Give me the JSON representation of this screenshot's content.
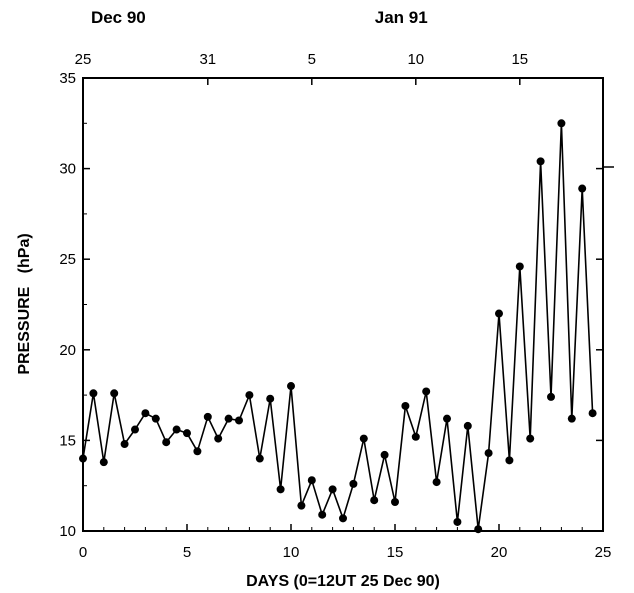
{
  "chart_data": {
    "type": "line",
    "xlabel": "DAYS (0=12UT 25 Dec 90)",
    "ylabel": "PRESSURE   (hPa)",
    "xlim": [
      0,
      25
    ],
    "ylim": [
      10,
      35
    ],
    "x_ticks": [
      0,
      5,
      10,
      15,
      20,
      25
    ],
    "y_ticks": [
      10,
      15,
      20,
      25,
      30,
      35
    ],
    "top_axis": {
      "months": [
        {
          "label": "Dec 90",
          "x": 1.7
        },
        {
          "label": "Jan 91",
          "x": 15.3
        }
      ],
      "ticks": [
        {
          "label": "25",
          "x": 0
        },
        {
          "label": "31",
          "x": 6
        },
        {
          "label": "5",
          "x": 11
        },
        {
          "label": "10",
          "x": 16
        },
        {
          "label": "15",
          "x": 21
        }
      ]
    },
    "series": [
      {
        "x": [
          0,
          0.5,
          1,
          1.5,
          2,
          2.5,
          3,
          3.5,
          4,
          4.5,
          5,
          5.5,
          6,
          6.5,
          7,
          7.5,
          8,
          8.5,
          9,
          9.5,
          10,
          10.5,
          11,
          11.5,
          12,
          12.5,
          13,
          13.5,
          14,
          14.5,
          15,
          15.5,
          16,
          16.5,
          17,
          17.5,
          18,
          18.5,
          19,
          19.5,
          20,
          20.5,
          21,
          21.5,
          22,
          22.5,
          23,
          23.5,
          24,
          24.5
        ],
        "y": [
          14.0,
          17.6,
          13.8,
          17.6,
          14.8,
          15.6,
          16.5,
          16.2,
          14.9,
          15.6,
          15.4,
          14.4,
          16.3,
          15.1,
          16.2,
          16.1,
          17.5,
          14.0,
          17.3,
          12.3,
          18.0,
          11.4,
          12.8,
          10.9,
          12.3,
          10.7,
          12.6,
          15.1,
          11.7,
          14.2,
          11.6,
          16.9,
          15.2,
          17.7,
          12.7,
          16.2,
          10.5,
          15.8,
          10.1,
          14.3,
          22.0,
          13.9,
          24.6,
          15.1,
          30.4,
          17.4,
          32.5,
          16.2,
          28.9,
          16.5
        ]
      }
    ]
  }
}
